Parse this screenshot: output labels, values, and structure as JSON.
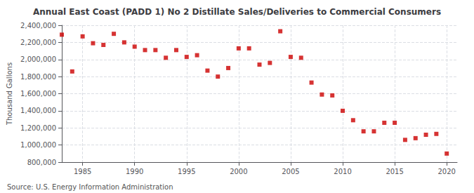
{
  "chart_data": {
    "type": "scatter",
    "title": "Annual East Coast (PADD 1) No 2 Distillate Sales/Deliveries to Commercial Consumers",
    "ylabel": "Thousand Gallons",
    "annotations": [
      "Source: U.S. Energy Information Administration"
    ],
    "color": "#cc0000",
    "marker": "square",
    "grid": true,
    "x": [
      1983,
      1984,
      1985,
      1986,
      1987,
      1988,
      1989,
      1990,
      1991,
      1992,
      1993,
      1994,
      1995,
      1996,
      1997,
      1998,
      1999,
      2000,
      2001,
      2002,
      2003,
      2004,
      2005,
      2006,
      2007,
      2008,
      2009,
      2010,
      2011,
      2012,
      2013,
      2014,
      2015,
      2016,
      2017,
      2018,
      2019,
      2020
    ],
    "values": [
      2290000,
      1860000,
      2270000,
      2190000,
      2170000,
      2300000,
      2200000,
      2150000,
      2110000,
      2110000,
      2020000,
      2110000,
      2030000,
      2050000,
      1870000,
      1800000,
      1900000,
      2130000,
      2130000,
      1940000,
      1960000,
      2330000,
      2030000,
      2020000,
      1730000,
      1590000,
      1580000,
      1400000,
      1290000,
      1160000,
      1160000,
      1260000,
      1260000,
      1060000,
      1080000,
      1120000,
      1130000,
      900000
    ],
    "xlim": [
      1983,
      2021
    ],
    "xticks": [
      1985,
      1990,
      1995,
      2000,
      2005,
      2010,
      2015,
      2020
    ],
    "ylim": [
      800000,
      2400000
    ],
    "yticks": [
      {
        "value": 800000,
        "label": "800,000"
      },
      {
        "value": 1000000,
        "label": "1,000,000"
      },
      {
        "value": 1200000,
        "label": "1,200,000"
      },
      {
        "value": 1400000,
        "label": "1,400,000"
      },
      {
        "value": 1600000,
        "label": "1,600,000"
      },
      {
        "value": 1800000,
        "label": "1,800,000"
      },
      {
        "value": 2000000,
        "label": "2,000,000"
      },
      {
        "value": 2200000,
        "label": "2,200,000"
      },
      {
        "value": 2400000,
        "label": "2,400,000"
      }
    ]
  }
}
